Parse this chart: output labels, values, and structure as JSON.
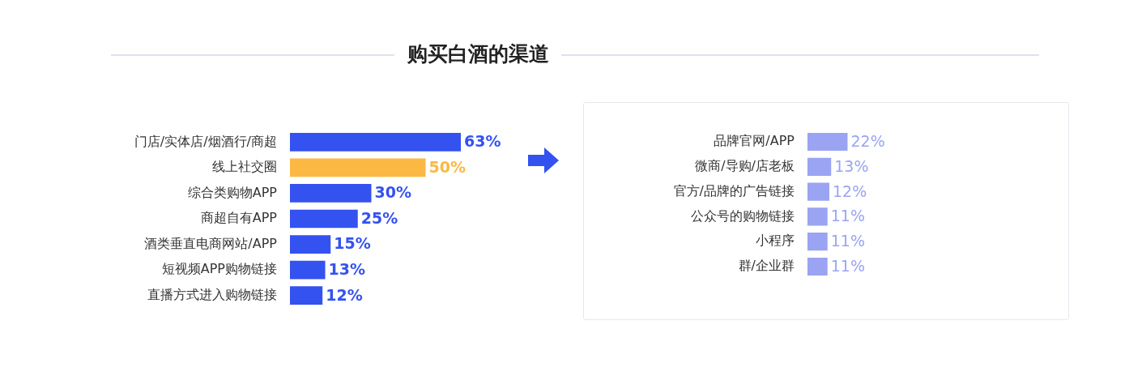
{
  "chart_data": [
    {
      "type": "bar",
      "orientation": "horizontal",
      "title": "购买白酒的渠道",
      "categories": [
        "门店/实体店/烟酒行/商超",
        "线上社交圈",
        "综合类购物APP",
        "商超自有APP",
        "酒类垂直电商网站/APP",
        "短视频APP购物链接",
        "直播方式进入购物链接"
      ],
      "values": [
        63,
        50,
        30,
        25,
        15,
        13,
        12
      ],
      "colors": [
        "#3452f0",
        "#fbb843",
        "#3452f0",
        "#3452f0",
        "#3452f0",
        "#3452f0",
        "#3452f0"
      ],
      "value_labels": [
        "63%",
        "50%",
        "30%",
        "25%",
        "15%",
        "13%",
        "12%"
      ],
      "tick_labels": "y"
    },
    {
      "type": "bar",
      "orientation": "horizontal",
      "categories": [
        "品牌官网/APP",
        "微商/导购/店老板",
        "官方/品牌的广告链接",
        "公众号的购物链接",
        "小程序",
        "群/企业群"
      ],
      "values": [
        22,
        13,
        12,
        11,
        11,
        11
      ],
      "colors": [
        "#9aa4f2",
        "#9aa4f2",
        "#9aa4f2",
        "#9aa4f2",
        "#9aa4f2",
        "#9aa4f2"
      ],
      "value_labels": [
        "22%",
        "13%",
        "12%",
        "11%",
        "11%",
        "11%"
      ],
      "tick_labels": "y"
    }
  ]
}
